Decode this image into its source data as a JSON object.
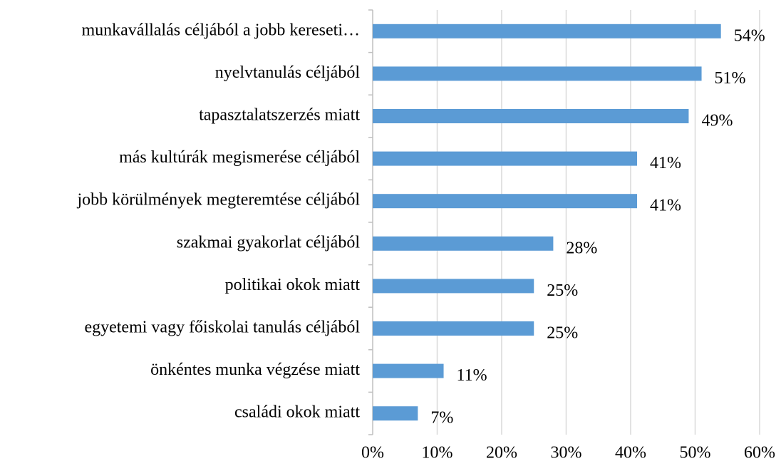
{
  "chart_data": {
    "type": "bar",
    "orientation": "horizontal",
    "categories": [
      "munkavállalás céljából a jobb kereseti…",
      "nyelvtanulás céljából",
      "tapasztalatszerzés miatt",
      "más kultúrák megismerése céljából",
      "jobb körülmények megteremtése céljából",
      "szakmai gyakorlat céljából",
      "politikai okok miatt",
      "egyetemi vagy főiskolai tanulás céljából",
      "önkéntes munka végzése miatt",
      "családi okok miatt"
    ],
    "values": [
      54,
      51,
      49,
      41,
      41,
      28,
      25,
      25,
      11,
      7
    ],
    "value_labels": [
      "54%",
      "51%",
      "49%",
      "41%",
      "41%",
      "28%",
      "25%",
      "25%",
      "11%",
      "7%"
    ],
    "color": "#5b9bd5",
    "xlim": [
      0,
      60
    ],
    "xticks": [
      {
        "value": 0,
        "label": "0%"
      },
      {
        "value": 10,
        "label": "10%"
      },
      {
        "value": 20,
        "label": "20%"
      },
      {
        "value": 30,
        "label": "30%"
      },
      {
        "value": 40,
        "label": "40%"
      },
      {
        "value": 50,
        "label": "50%"
      },
      {
        "value": 60,
        "label": "60%"
      }
    ],
    "grid": true
  }
}
